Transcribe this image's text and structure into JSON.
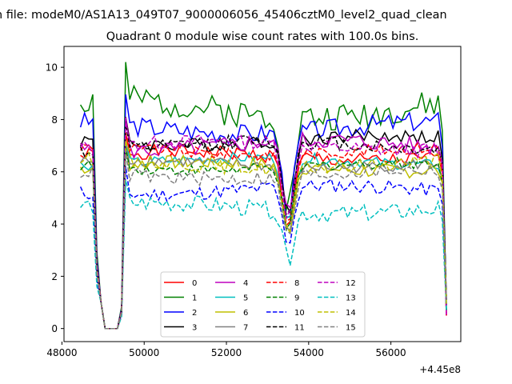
{
  "chart_data": {
    "type": "line",
    "supertitle": "n file: modeM0/AS1A13_049T07_9000006056_45406cztM0_level2_quad_clean",
    "title": "Quadrant 0 module wise count rates with 100.0s bins.",
    "xlabel": "",
    "ylabel": "",
    "x_offset_label": "+4.45e8",
    "xlim": [
      48050,
      57700
    ],
    "ylim": [
      -0.5,
      10.8
    ],
    "x_ticks": [
      48000,
      50000,
      52000,
      54000,
      56000
    ],
    "x_tick_labels": [
      "48000",
      "50000",
      "52000",
      "54000",
      "56000"
    ],
    "y_ticks": [
      0,
      2,
      4,
      6,
      8,
      10
    ],
    "y_tick_labels": [
      "0",
      "2",
      "4",
      "6",
      "8",
      "10"
    ],
    "grid": false,
    "legend_placement": "lower-center",
    "legend_columns": 4,
    "x_start": 48450,
    "x_step": 100,
    "x_end": 57350,
    "series": [
      {
        "name": "0",
        "color": "#ff0000",
        "dash": "solid",
        "base": 6.6,
        "amp": 0.5,
        "seed": 1
      },
      {
        "name": "1",
        "color": "#008000",
        "dash": "solid",
        "base": 8.4,
        "amp": 1.0,
        "seed": 2
      },
      {
        "name": "2",
        "color": "#0000ff",
        "dash": "solid",
        "base": 7.7,
        "amp": 0.7,
        "seed": 3
      },
      {
        "name": "3",
        "color": "#000000",
        "dash": "solid",
        "base": 7.2,
        "amp": 0.5,
        "seed": 4
      },
      {
        "name": "4",
        "color": "#bf00bf",
        "dash": "solid",
        "base": 7.0,
        "amp": 0.6,
        "seed": 5
      },
      {
        "name": "5",
        "color": "#00bfbf",
        "dash": "solid",
        "base": 6.4,
        "amp": 0.4,
        "seed": 6
      },
      {
        "name": "6",
        "color": "#bfbf00",
        "dash": "solid",
        "base": 6.2,
        "amp": 0.5,
        "seed": 7
      },
      {
        "name": "7",
        "color": "#808080",
        "dash": "solid",
        "base": 6.3,
        "amp": 0.4,
        "seed": 8
      },
      {
        "name": "8",
        "color": "#ff0000",
        "dash": "dashed",
        "base": 6.8,
        "amp": 0.4,
        "seed": 9
      },
      {
        "name": "9",
        "color": "#008000",
        "dash": "dashed",
        "base": 6.2,
        "amp": 0.4,
        "seed": 10
      },
      {
        "name": "10",
        "color": "#0000ff",
        "dash": "dashed",
        "base": 5.3,
        "amp": 0.5,
        "seed": 11
      },
      {
        "name": "11",
        "color": "#000000",
        "dash": "dashed",
        "base": 7.0,
        "amp": 0.5,
        "seed": 12
      },
      {
        "name": "12",
        "color": "#bf00bf",
        "dash": "dashed",
        "base": 7.0,
        "amp": 0.5,
        "seed": 13
      },
      {
        "name": "13",
        "color": "#00bfbf",
        "dash": "dashed",
        "base": 4.6,
        "amp": 0.6,
        "seed": 14
      },
      {
        "name": "14",
        "color": "#bfbf00",
        "dash": "dashed",
        "base": 6.3,
        "amp": 0.5,
        "seed": 15
      },
      {
        "name": "15",
        "color": "#808080",
        "dash": "dashed",
        "base": 5.9,
        "amp": 0.5,
        "seed": 16
      }
    ]
  }
}
